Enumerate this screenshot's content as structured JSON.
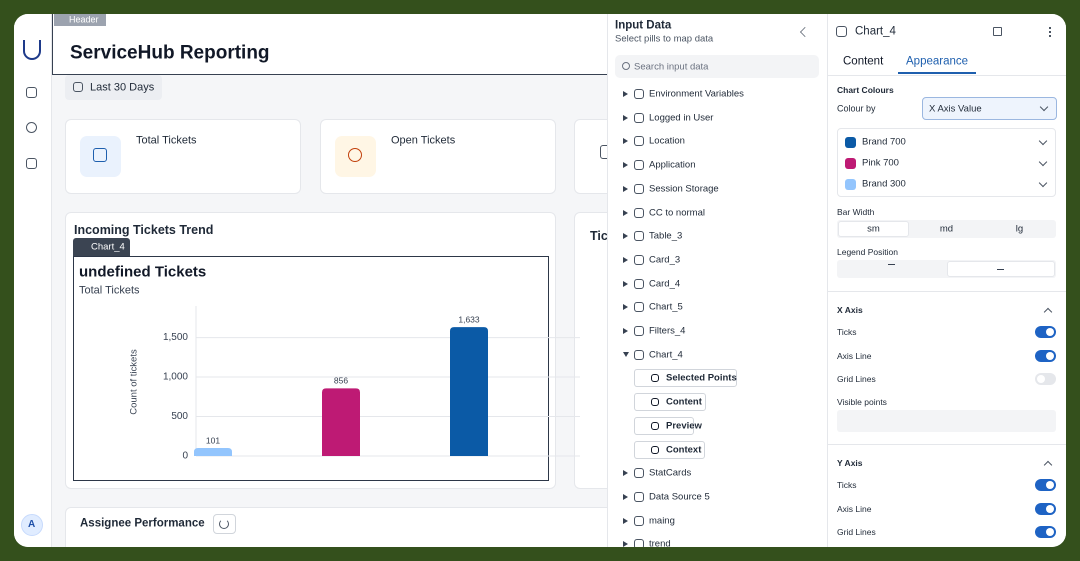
{
  "sidebar": {
    "avatar": "A"
  },
  "header": {
    "tag": "Header",
    "title": "ServiceHub Reporting",
    "date_range": "Last 30 Days"
  },
  "stat_cards": [
    "Total Tickets",
    "Open Tickets"
  ],
  "trend": {
    "title": "Incoming Tickets Trend",
    "chip": "Chart_4",
    "next_title": "Tic"
  },
  "chart_data": {
    "type": "bar",
    "title": "undefined Tickets",
    "subtitle": "Total Tickets",
    "y_label": "Count of tickets",
    "categories": [
      null,
      null,
      null
    ],
    "values": [
      101,
      856,
      1633
    ],
    "value_labels": [
      "101",
      "856",
      "1,633"
    ],
    "colors": [
      "#93c5fd",
      "#be1a74",
      "#0b5aa6"
    ],
    "ylim": [
      0,
      1900
    ],
    "yticks": [
      0,
      500,
      {
        "value": 1000,
        "label": "1,000"
      },
      {
        "value": 1500,
        "label": "1,500"
      }
    ],
    "grid": true
  },
  "assignee": {
    "title": "Assignee Performance"
  },
  "input_panel": {
    "title": "Input Data",
    "subtitle": "Select pills to map data",
    "search_placeholder": "Search input data",
    "items": [
      {
        "label": "Environment Variables"
      },
      {
        "label": "Logged in User"
      },
      {
        "label": "Location"
      },
      {
        "label": "Application"
      },
      {
        "label": "Session Storage"
      },
      {
        "label": "CC to normal"
      },
      {
        "label": "Table_3"
      },
      {
        "label": "Card_3"
      },
      {
        "label": "Card_4"
      },
      {
        "label": "Chart_5"
      },
      {
        "label": "Filters_4"
      },
      {
        "label": "Chart_4",
        "children": [
          "Selected Points",
          "Content",
          "Preview",
          "Context"
        ]
      },
      {
        "label": "StatCards"
      },
      {
        "label": "Data Source 5"
      },
      {
        "label": "maing"
      },
      {
        "label": "trend"
      }
    ]
  },
  "appearance": {
    "title": "Chart_4",
    "tabs": [
      "Content",
      "Appearance"
    ],
    "active_tab": 1,
    "chart_colours": {
      "title": "Chart Colours",
      "colour_by_label": "Colour by",
      "colour_by": "X Axis Value",
      "colors": [
        {
          "name": "Brand 700",
          "color": "#0b5aa6"
        },
        {
          "name": "Pink 700",
          "color": "#be1a74"
        },
        {
          "name": "Brand 300",
          "color": "#93c5fd"
        }
      ]
    },
    "bar_width": {
      "label": "Bar Width",
      "options": [
        "sm",
        "md",
        "lg"
      ],
      "selected": 0
    },
    "legend_position": {
      "label": "Legend Position"
    },
    "x_axis": {
      "title": "X Axis",
      "toggles": [
        {
          "label": "Ticks",
          "on": true
        },
        {
          "label": "Axis Line",
          "on": true
        },
        {
          "label": "Grid Lines",
          "on": false
        }
      ],
      "visible_points": "Visible points"
    },
    "y_axis": {
      "title": "Y Axis",
      "toggles": [
        {
          "label": "Ticks",
          "on": true
        },
        {
          "label": "Axis Line",
          "on": true
        },
        {
          "label": "Grid Lines",
          "on": true
        }
      ]
    }
  }
}
